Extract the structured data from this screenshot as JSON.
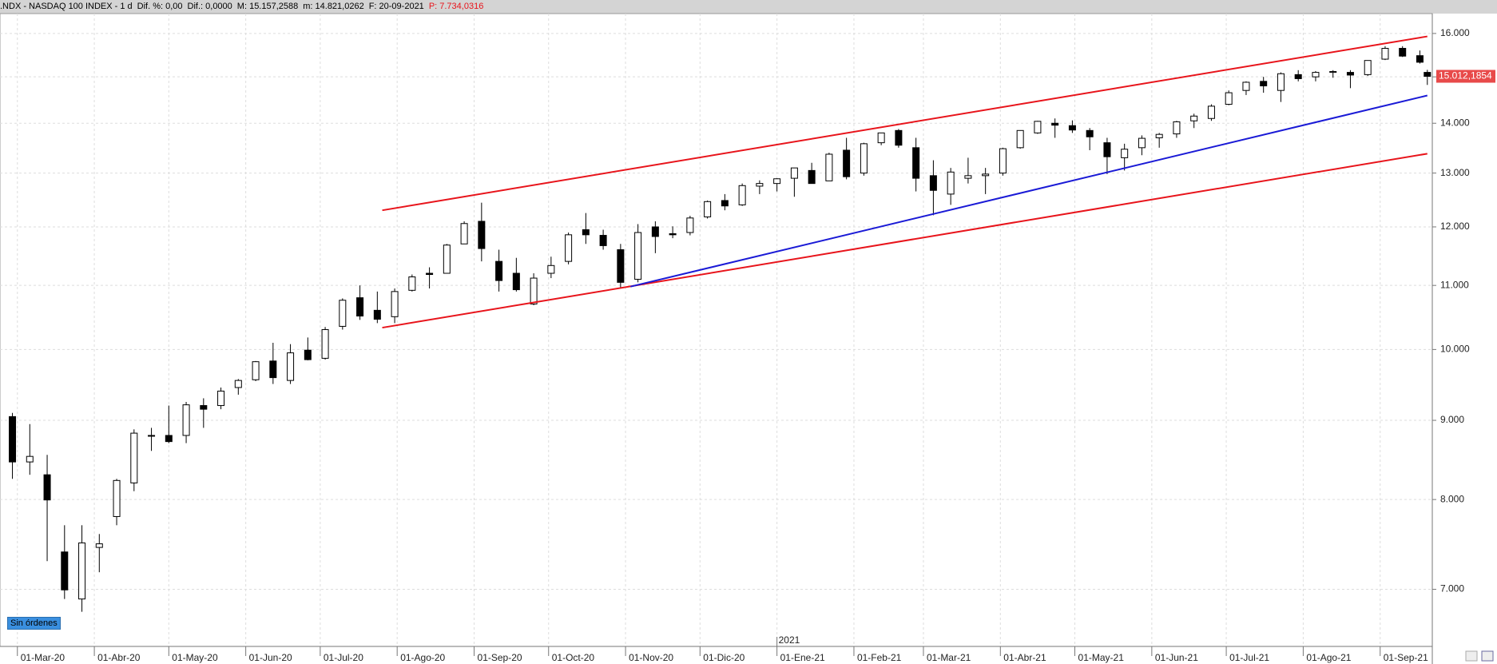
{
  "header": {
    "symbol": ".NDX - NASDAQ 100 INDEX - 1 d",
    "change_pct": "Dif. %: 0,00",
    "change": "Dif.: 0,0000",
    "high": "M: 15.157,2588",
    "low": "m: 14.821,0262",
    "date": "F: 20-09-2021",
    "price": "P: 7.734,0316"
  },
  "button": "Sin órdenes",
  "chart_data": {
    "type": "candlestick",
    "log_scale": true,
    "grid": true,
    "up_color": "#ffffff",
    "down_color": "#000000",
    "x": [
      "2020-02-28",
      "2020-03-06",
      "2020-03-13",
      "2020-03-20",
      "2020-03-27",
      "2020-04-03",
      "2020-04-10",
      "2020-04-17",
      "2020-04-24",
      "2020-05-01",
      "2020-05-08",
      "2020-05-15",
      "2020-05-22",
      "2020-05-29",
      "2020-06-05",
      "2020-06-12",
      "2020-06-19",
      "2020-06-26",
      "2020-07-03",
      "2020-07-10",
      "2020-07-17",
      "2020-07-24",
      "2020-07-31",
      "2020-08-07",
      "2020-08-14",
      "2020-08-21",
      "2020-08-28",
      "2020-09-04",
      "2020-09-11",
      "2020-09-18",
      "2020-09-25",
      "2020-10-02",
      "2020-10-09",
      "2020-10-16",
      "2020-10-23",
      "2020-10-30",
      "2020-11-06",
      "2020-11-13",
      "2020-11-20",
      "2020-11-27",
      "2020-12-04",
      "2020-12-11",
      "2020-12-18",
      "2020-12-25",
      "2021-01-01",
      "2021-01-08",
      "2021-01-15",
      "2021-01-22",
      "2021-01-29",
      "2021-02-05",
      "2021-02-12",
      "2021-02-19",
      "2021-02-26",
      "2021-03-05",
      "2021-03-12",
      "2021-03-19",
      "2021-03-26",
      "2021-04-02",
      "2021-04-09",
      "2021-04-16",
      "2021-04-23",
      "2021-04-30",
      "2021-05-07",
      "2021-05-14",
      "2021-05-21",
      "2021-05-28",
      "2021-06-04",
      "2021-06-11",
      "2021-06-18",
      "2021-06-25",
      "2021-07-02",
      "2021-07-09",
      "2021-07-16",
      "2021-07-23",
      "2021-07-30",
      "2021-08-06",
      "2021-08-13",
      "2021-08-20",
      "2021-08-27",
      "2021-09-03",
      "2021-09-10",
      "2021-09-17",
      "2021-09-20"
    ],
    "open": [
      9050,
      8460,
      8300,
      7400,
      6900,
      7450,
      7800,
      8200,
      8800,
      8800,
      8800,
      9200,
      9200,
      9450,
      9560,
      9830,
      9550,
      9990,
      9870,
      10350,
      10800,
      10600,
      10500,
      10920,
      11200,
      11200,
      11700,
      12100,
      11400,
      11200,
      10700,
      11200,
      11400,
      11950,
      11850,
      11600,
      11100,
      12000,
      11880,
      11900,
      12180,
      12480,
      12400,
      12750,
      12800,
      12900,
      13050,
      12850,
      13450,
      13000,
      13600,
      13850,
      13500,
      12950,
      12600,
      12900,
      12950,
      13000,
      13500,
      13800,
      14000,
      13950,
      13850,
      13600,
      13300,
      13500,
      13700,
      13780,
      14050,
      14100,
      14400,
      14700,
      14900,
      14700,
      15050,
      15000,
      15100,
      15100,
      15050,
      15400,
      15650,
      15480,
      15100
    ],
    "high": [
      9100,
      8950,
      8550,
      7700,
      7700,
      7600,
      8250,
      8880,
      8900,
      9200,
      9250,
      9300,
      9450,
      9570,
      9830,
      10100,
      10080,
      10180,
      10340,
      10790,
      11000,
      10900,
      10950,
      11180,
      11300,
      11700,
      12100,
      12440,
      11600,
      11460,
      11200,
      11480,
      11900,
      12250,
      11950,
      11700,
      12050,
      12100,
      12010,
      12200,
      12480,
      12600,
      12800,
      12860,
      12900,
      13100,
      13200,
      13400,
      13700,
      13600,
      13800,
      13880,
      13700,
      13250,
      13100,
      13300,
      13100,
      13500,
      13850,
      14050,
      14100,
      14060,
      13900,
      13700,
      13580,
      13750,
      13800,
      14050,
      14200,
      14400,
      14700,
      14900,
      15000,
      15100,
      15150,
      15130,
      15150,
      15150,
      15370,
      15700,
      15700,
      15600,
      15157.2588
    ],
    "low": [
      8250,
      8300,
      7300,
      6900,
      6770,
      7180,
      7700,
      8100,
      8600,
      8700,
      8700,
      8900,
      9150,
      9350,
      9540,
      9500,
      9500,
      9840,
      9850,
      10300,
      10450,
      10400,
      10400,
      10900,
      10950,
      11200,
      11700,
      11400,
      10900,
      10900,
      10680,
      11120,
      11350,
      11700,
      11600,
      10950,
      11050,
      11540,
      11800,
      11850,
      12150,
      12300,
      12380,
      12600,
      12650,
      12550,
      12800,
      12850,
      12880,
      12950,
      13550,
      13500,
      12650,
      12210,
      12400,
      12800,
      12600,
      12950,
      13480,
      13780,
      13700,
      13800,
      13450,
      12980,
      13050,
      13350,
      13500,
      13700,
      13900,
      14050,
      14380,
      14600,
      14650,
      14450,
      14900,
      14900,
      14980,
      14750,
      15020,
      15380,
      15450,
      15300,
      14821.0262
    ],
    "close": [
      8460,
      8530,
      7995,
      6994,
      7500,
      7490,
      8230,
      8830,
      8790,
      8720,
      9210,
      9150,
      9400,
      9550,
      9820,
      9590,
      9950,
      9850,
      10300,
      10760,
      10510,
      10460,
      10900,
      11140,
      11180,
      11680,
      12060,
      11620,
      11080,
      10930,
      11120,
      11330,
      11860,
      11860,
      11670,
      11050,
      11900,
      11830,
      11860,
      12160,
      12460,
      12380,
      12760,
      12800,
      12890,
      13100,
      12800,
      13370,
      12930,
      13580,
      13800,
      13550,
      12900,
      12670,
      13020,
      12950,
      12980,
      13480,
      13850,
      14040,
      13960,
      13860,
      13720,
      13320,
      13470,
      13690,
      13770,
      14030,
      14150,
      14360,
      14650,
      14880,
      14800,
      15070,
      14960,
      15100,
      15120,
      15040,
      15370,
      15650,
      15470,
      15330,
      15012.1854
    ],
    "xlim": [
      "2020-02-23",
      "2021-09-22"
    ],
    "xticks": [
      {
        "value": "2020-03-01",
        "label": "01-Mar-20"
      },
      {
        "value": "2020-04-01",
        "label": "01-Abr-20"
      },
      {
        "value": "2020-05-01",
        "label": "01-May-20"
      },
      {
        "value": "2020-06-01",
        "label": "01-Jun-20"
      },
      {
        "value": "2020-07-01",
        "label": "01-Jul-20"
      },
      {
        "value": "2020-08-01",
        "label": "01-Ago-20"
      },
      {
        "value": "2020-09-01",
        "label": "01-Sep-20"
      },
      {
        "value": "2020-10-01",
        "label": "01-Oct-20"
      },
      {
        "value": "2020-11-01",
        "label": "01-Nov-20"
      },
      {
        "value": "2020-12-01",
        "label": "01-Dic-20"
      },
      {
        "value": "2021-01-01",
        "label": "01-Ene-21"
      },
      {
        "value": "2021-02-01",
        "label": "01-Feb-21"
      },
      {
        "value": "2021-03-01",
        "label": "01-Mar-21"
      },
      {
        "value": "2021-04-01",
        "label": "01-Abr-21"
      },
      {
        "value": "2021-05-01",
        "label": "01-May-21"
      },
      {
        "value": "2021-06-01",
        "label": "01-Jun-21"
      },
      {
        "value": "2021-07-01",
        "label": "01-Jul-21"
      },
      {
        "value": "2021-08-01",
        "label": "01-Ago-21"
      },
      {
        "value": "2021-09-01",
        "label": "01-Sep-21"
      }
    ],
    "year_label": "2021",
    "ylim": [
      6430,
      16480
    ],
    "yticks": [
      {
        "value": 7000,
        "label": "7.000"
      },
      {
        "value": 8000,
        "label": "8.000"
      },
      {
        "value": 9000,
        "label": "9.000"
      },
      {
        "value": 10000,
        "label": "10.000"
      },
      {
        "value": 11000,
        "label": "11.000"
      },
      {
        "value": 12000,
        "label": "12.000"
      },
      {
        "value": 13000,
        "label": "13.000"
      },
      {
        "value": 14000,
        "label": "14.000"
      },
      {
        "value": 15000,
        "label": "15.000"
      },
      {
        "value": 16000,
        "label": "16.000"
      }
    ],
    "last_price": {
      "value": 15012.1854,
      "label": "15.012,1854",
      "color": "#e84a4a"
    },
    "lines": [
      {
        "color": "#e8141b",
        "x": [
          "2020-07-26",
          "2021-09-20"
        ],
        "y": [
          12300,
          15930
        ]
      },
      {
        "color": "#e8141b",
        "x": [
          "2020-07-26",
          "2021-09-20"
        ],
        "y": [
          10330,
          13380
        ]
      },
      {
        "color": "#1a1ad6",
        "x": [
          "2020-11-03",
          "2021-09-20"
        ],
        "y": [
          10980,
          14590
        ]
      }
    ]
  }
}
